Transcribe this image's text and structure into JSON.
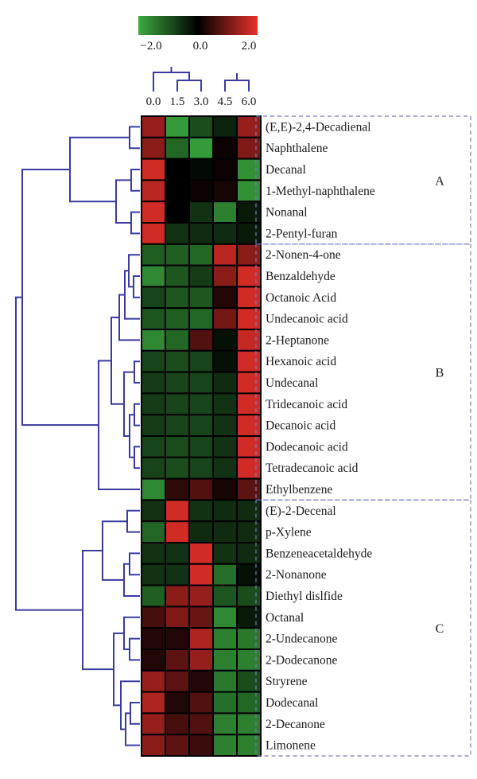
{
  "chart_data": {
    "type": "heatmap",
    "color_scale": {
      "min": -2.0,
      "mid": 0.0,
      "max": 2.0,
      "tick_labels": [
        "−2.0",
        "0.0",
        "2.0"
      ],
      "low_color": "#3bab3e",
      "mid_color": "#000000",
      "high_color": "#e8302a"
    },
    "dendrogram_color": "#3a3aa0",
    "box_border_color": "#7a7ac8",
    "columns": [
      "0.0",
      "1.5",
      "3.0",
      "4.5",
      "6.0"
    ],
    "rows": [
      {
        "label": "(E,E)-2,4-Decadienal",
        "values": [
          1.3,
          -1.8,
          -0.9,
          -0.4,
          1.3
        ]
      },
      {
        "label": "Naphthalene",
        "values": [
          1.2,
          -1.2,
          -1.8,
          0.1,
          1.1
        ]
      },
      {
        "label": "Decanal",
        "values": [
          1.8,
          0.0,
          -0.1,
          0.1,
          -1.7
        ]
      },
      {
        "label": "1-Methyl-naphthalene",
        "values": [
          1.6,
          0.0,
          0.1,
          0.2,
          -1.7
        ]
      },
      {
        "label": "Nonanal",
        "values": [
          1.8,
          0.0,
          -0.6,
          -1.5,
          -0.3
        ]
      },
      {
        "label": "2-Pentyl-furan",
        "values": [
          1.8,
          -0.6,
          -0.5,
          -0.5,
          -0.3
        ]
      },
      {
        "label": "2-Nonen-4-one",
        "values": [
          -1.1,
          -1.1,
          -1.2,
          1.6,
          1.2
        ]
      },
      {
        "label": "Benzaldehyde",
        "values": [
          -1.6,
          -1.0,
          -0.7,
          1.2,
          1.8
        ]
      },
      {
        "label": "Octanoic Acid",
        "values": [
          -0.8,
          -1.0,
          -1.0,
          0.3,
          1.8
        ]
      },
      {
        "label": "Undecanoic acid",
        "values": [
          -1.0,
          -1.1,
          -1.2,
          1.0,
          1.8
        ]
      },
      {
        "label": "2-Heptanone",
        "values": [
          -1.6,
          -1.2,
          0.7,
          -0.2,
          1.7
        ]
      },
      {
        "label": "Hexanoic acid",
        "values": [
          -0.8,
          -0.9,
          -0.8,
          -0.2,
          1.8
        ]
      },
      {
        "label": "Undecanal",
        "values": [
          -0.7,
          -0.8,
          -0.8,
          -0.5,
          1.8
        ]
      },
      {
        "label": "Tridecanoic acid",
        "values": [
          -0.7,
          -0.8,
          -0.8,
          -0.6,
          1.8
        ]
      },
      {
        "label": "Decanoic acid",
        "values": [
          -0.7,
          -0.8,
          -0.8,
          -0.6,
          1.8
        ]
      },
      {
        "label": "Dodecanoic acid",
        "values": [
          -0.8,
          -0.9,
          -0.8,
          -0.6,
          1.8
        ]
      },
      {
        "label": "Tetradecanoic acid",
        "values": [
          -0.8,
          -0.9,
          -0.8,
          -0.6,
          1.8
        ]
      },
      {
        "label": "Ethylbenzene",
        "values": [
          -1.6,
          0.4,
          0.7,
          0.2,
          0.8
        ]
      },
      {
        "label": "(E)-2-Decenal",
        "values": [
          -0.6,
          1.8,
          -0.6,
          -0.5,
          -0.5
        ]
      },
      {
        "label": "p-Xylene",
        "values": [
          -1.2,
          1.8,
          -0.5,
          -0.5,
          -0.5
        ]
      },
      {
        "label": "Benzeneacetaldehyde",
        "values": [
          -0.6,
          -0.6,
          1.8,
          -0.6,
          -0.5
        ]
      },
      {
        "label": "2-Nonanone",
        "values": [
          -0.6,
          -0.6,
          1.8,
          -1.3,
          -0.2
        ]
      },
      {
        "label": "Diethyl dislfide",
        "values": [
          -1.1,
          1.2,
          1.3,
          -1.0,
          -0.9
        ]
      },
      {
        "label": "Octanal",
        "values": [
          0.6,
          1.1,
          0.9,
          -1.6,
          -0.3
        ]
      },
      {
        "label": "2-Undecanone",
        "values": [
          0.3,
          0.3,
          1.5,
          -1.5,
          -1.4
        ]
      },
      {
        "label": "2-Dodecanone",
        "values": [
          0.3,
          0.8,
          1.3,
          -1.5,
          -1.5
        ]
      },
      {
        "label": "Stryrene",
        "values": [
          1.3,
          0.8,
          0.3,
          -1.4,
          -0.9
        ]
      },
      {
        "label": "Dodecanal",
        "values": [
          1.5,
          0.3,
          0.7,
          -1.3,
          -1.2
        ]
      },
      {
        "label": "2-Decanone",
        "values": [
          1.3,
          0.6,
          0.7,
          -1.5,
          -1.5
        ]
      },
      {
        "label": "Limonene",
        "values": [
          1.2,
          0.8,
          0.5,
          -1.5,
          -1.5
        ]
      }
    ],
    "clusters": [
      {
        "name": "A",
        "start": 0,
        "end": 5
      },
      {
        "name": "B",
        "start": 6,
        "end": 17
      },
      {
        "name": "C",
        "start": 18,
        "end": 29
      }
    ],
    "grid": true
  }
}
